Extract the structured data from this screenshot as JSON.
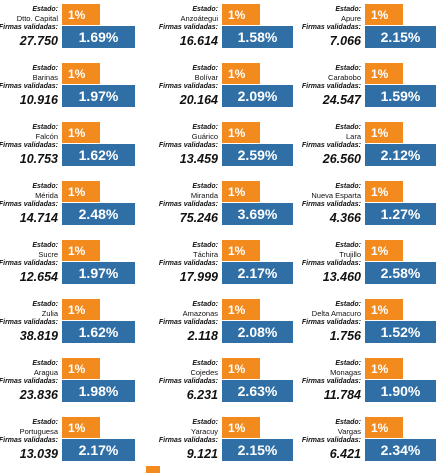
{
  "labels": {
    "estado": "Estado:",
    "firmas": "Firmas validadas:",
    "threshold": "1%"
  },
  "cells": [
    {
      "name": "Dtto. Capital",
      "signatures": "27.750",
      "percent": "1.69%"
    },
    {
      "name": "Anzoátegui",
      "signatures": "16.614",
      "percent": "1.58%"
    },
    {
      "name": "Apure",
      "signatures": "7.066",
      "percent": "2.15%"
    },
    {
      "name": "Barinas",
      "signatures": "10.916",
      "percent": "1.97%"
    },
    {
      "name": "Bolívar",
      "signatures": "20.164",
      "percent": "2.09%"
    },
    {
      "name": "Carabobo",
      "signatures": "24.547",
      "percent": "1.59%"
    },
    {
      "name": "Falcón",
      "signatures": "10.753",
      "percent": "1.62%"
    },
    {
      "name": "Guárico",
      "signatures": "13.459",
      "percent": "2.59%"
    },
    {
      "name": "Lara",
      "signatures": "26.560",
      "percent": "2.12%"
    },
    {
      "name": "Mérida",
      "signatures": "14.714",
      "percent": "2.48%"
    },
    {
      "name": "Miranda",
      "signatures": "75.246",
      "percent": "3.69%"
    },
    {
      "name": "Nueva Esparta",
      "signatures": "4.366",
      "percent": "1.27%"
    },
    {
      "name": "Sucre",
      "signatures": "12.654",
      "percent": "1.97%"
    },
    {
      "name": "Táchira",
      "signatures": "17.999",
      "percent": "2.17%"
    },
    {
      "name": "Trujillo",
      "signatures": "13.460",
      "percent": "2.58%"
    },
    {
      "name": "Zulia",
      "signatures": "38.819",
      "percent": "1.62%"
    },
    {
      "name": "Amazonas",
      "signatures": "2.118",
      "percent": "2.08%"
    },
    {
      "name": "Delta Amacuro",
      "signatures": "1.756",
      "percent": "1.52%"
    },
    {
      "name": "Aragua",
      "signatures": "23.836",
      "percent": "1.98%"
    },
    {
      "name": "Cojedes",
      "signatures": "6.231",
      "percent": "2.63%"
    },
    {
      "name": "Monagas",
      "signatures": "11.784",
      "percent": "1.90%"
    },
    {
      "name": "Portuguesa",
      "signatures": "13.039",
      "percent": "2.17%"
    },
    {
      "name": "Yaracuy",
      "signatures": "9.121",
      "percent": "2.15%"
    },
    {
      "name": "Vargas",
      "signatures": "6.421",
      "percent": "2.34%"
    }
  ]
}
